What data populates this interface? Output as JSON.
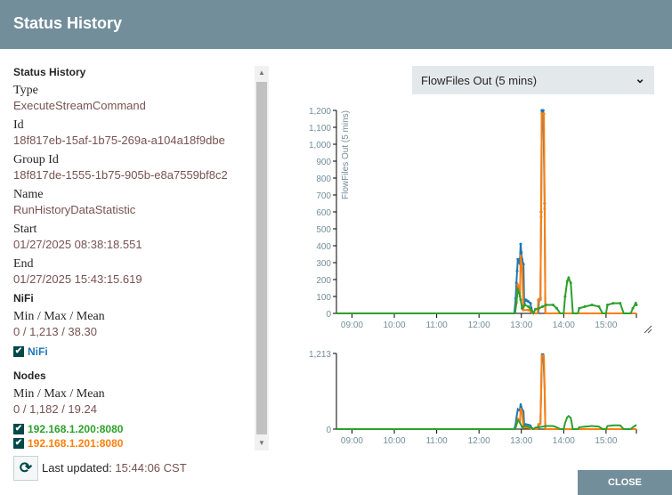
{
  "header": {
    "title": "Status History"
  },
  "details": {
    "section_title": "Status History",
    "fields": [
      {
        "label": "Type",
        "value": "ExecuteStreamCommand"
      },
      {
        "label": "Id",
        "value": "18f817eb-15af-1b75-269a-a104a18f9dbe"
      },
      {
        "label": "Group Id",
        "value": "18f817de-1555-1b75-905b-e8a7559bf8c2"
      },
      {
        "label": "Name",
        "value": "RunHistoryDataStatistic"
      },
      {
        "label": "Start",
        "value": "01/27/2025 08:38:18.551"
      },
      {
        "label": "End",
        "value": "01/27/2025 15:43:15.619"
      }
    ],
    "nifi": {
      "title": "NiFi",
      "stats_label": "Min / Max / Mean",
      "stats": "0 / 1,213 / 38.30",
      "series_label": "NiFi",
      "checked": true
    },
    "nodes": {
      "title": "Nodes",
      "stats_label": "Min / Max / Mean",
      "stats": "0 / 1,182 / 19.24",
      "items": [
        {
          "label": "192.168.1.200:8080",
          "checked": true,
          "color": "#2ca02c"
        },
        {
          "label": "192.168.1.201:8080",
          "checked": true,
          "color": "#ff7f0e"
        }
      ]
    }
  },
  "footer": {
    "last_updated_label": "Last updated:",
    "last_updated_value": "15:44:06 CST",
    "close_label": "CLOSE",
    "refresh_icon": "refresh-icon"
  },
  "metric_select": {
    "selected": "FlowFiles Out (5 mins)"
  },
  "colors": {
    "header": "#728e9b",
    "nifi": "#1f77b4",
    "node200": "#2ca02c",
    "node201": "#ff7f0e"
  },
  "chart_data": [
    {
      "type": "line",
      "ylabel": "FlowFiles Out (5 mins)",
      "ylim": [
        0,
        1200
      ],
      "yticks": [
        "0",
        "100",
        "200",
        "300",
        "400",
        "500",
        "600",
        "700",
        "800",
        "900",
        "1,000",
        "1,100",
        "1,200"
      ],
      "xlim": [
        "08:38",
        "15:43"
      ],
      "xticks": [
        "09:00",
        "10:00",
        "11:00",
        "12:00",
        "13:00",
        "14:00",
        "15:00"
      ],
      "series": [
        {
          "name": "NiFi",
          "color": "#1f77b4",
          "points": [
            [
              "08:38",
              0
            ],
            [
              "12:50",
              0
            ],
            [
              "12:52",
              90
            ],
            [
              "12:53",
              180
            ],
            [
              "12:54",
              250
            ],
            [
              "12:55",
              320
            ],
            [
              "12:57",
              300
            ],
            [
              "12:58",
              320
            ],
            [
              "12:59",
              410
            ],
            [
              "13:00",
              360
            ],
            [
              "13:01",
              320
            ],
            [
              "13:03",
              290
            ],
            [
              "13:04",
              60
            ],
            [
              "13:06",
              80
            ],
            [
              "13:08",
              75
            ],
            [
              "13:10",
              70
            ],
            [
              "13:13",
              60
            ],
            [
              "13:14",
              30
            ],
            [
              "13:17",
              0
            ],
            [
              "13:24",
              0
            ],
            [
              "13:25",
              80
            ],
            [
              "13:27",
              90
            ],
            [
              "13:28",
              600
            ],
            [
              "13:29",
              1200
            ],
            [
              "13:31",
              1200
            ],
            [
              "13:33",
              650
            ],
            [
              "13:34",
              0
            ],
            [
              "15:43",
              0
            ]
          ]
        },
        {
          "name": "192.168.1.201:8080",
          "color": "#ff7f0e",
          "points": [
            [
              "08:38",
              0
            ],
            [
              "12:51",
              0
            ],
            [
              "12:53",
              60
            ],
            [
              "12:55",
              170
            ],
            [
              "12:57",
              150
            ],
            [
              "12:58",
              100
            ],
            [
              "12:59",
              340
            ],
            [
              "13:00",
              290
            ],
            [
              "13:01",
              280
            ],
            [
              "13:03",
              20
            ],
            [
              "13:10",
              20
            ],
            [
              "13:14",
              10
            ],
            [
              "13:16",
              0
            ],
            [
              "13:23",
              0
            ],
            [
              "13:24",
              80
            ],
            [
              "13:27",
              80
            ],
            [
              "13:28",
              570
            ],
            [
              "13:29",
              1180
            ],
            [
              "13:32",
              1180
            ],
            [
              "13:33",
              620
            ],
            [
              "13:34",
              0
            ],
            [
              "15:43",
              0
            ]
          ]
        },
        {
          "name": "192.168.1.200:8080",
          "color": "#2ca02c",
          "points": [
            [
              "08:38",
              0
            ],
            [
              "12:51",
              0
            ],
            [
              "12:53",
              70
            ],
            [
              "12:55",
              140
            ],
            [
              "12:57",
              120
            ],
            [
              "12:59",
              80
            ],
            [
              "13:01",
              30
            ],
            [
              "13:03",
              40
            ],
            [
              "13:05",
              50
            ],
            [
              "13:10",
              40
            ],
            [
              "13:14",
              20
            ],
            [
              "13:17",
              0
            ],
            [
              "13:20",
              25
            ],
            [
              "13:25",
              30
            ],
            [
              "13:30",
              40
            ],
            [
              "13:35",
              50
            ],
            [
              "13:45",
              50
            ],
            [
              "13:50",
              30
            ],
            [
              "13:55",
              0
            ],
            [
              "14:00",
              0
            ],
            [
              "14:02",
              100
            ],
            [
              "14:05",
              190
            ],
            [
              "14:07",
              210
            ],
            [
              "14:10",
              180
            ],
            [
              "14:13",
              0
            ],
            [
              "14:20",
              0
            ],
            [
              "14:22",
              30
            ],
            [
              "14:30",
              40
            ],
            [
              "14:40",
              50
            ],
            [
              "14:50",
              40
            ],
            [
              "14:55",
              0
            ],
            [
              "15:00",
              0
            ],
            [
              "15:02",
              50
            ],
            [
              "15:10",
              60
            ],
            [
              "15:20",
              60
            ],
            [
              "15:25",
              0
            ],
            [
              "15:35",
              0
            ],
            [
              "15:38",
              30
            ],
            [
              "15:42",
              60
            ],
            [
              "15:43",
              50
            ]
          ]
        }
      ]
    },
    {
      "type": "line",
      "ylim": [
        0,
        1213
      ],
      "yticks": [
        "0",
        "1,213"
      ],
      "xlim": [
        "08:38",
        "15:43"
      ],
      "xticks": [
        "09:00",
        "10:00",
        "11:00",
        "12:00",
        "13:00",
        "14:00",
        "15:00"
      ],
      "series_ref": "same as main chart"
    }
  ]
}
